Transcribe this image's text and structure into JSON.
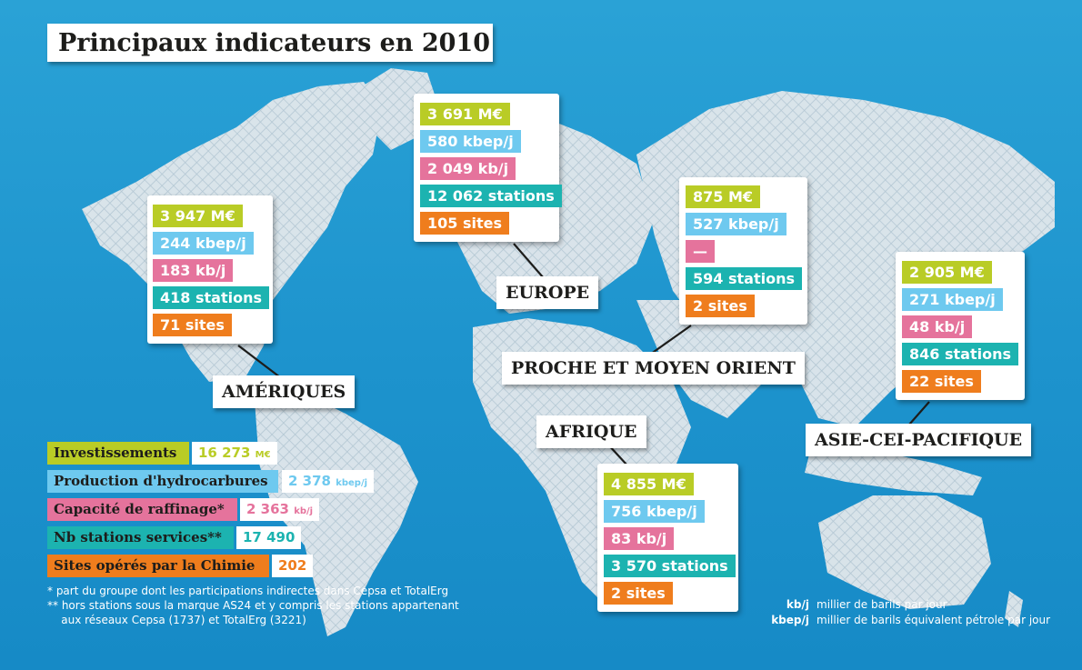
{
  "title": "Principaux indicateurs en 2010",
  "regions": {
    "ameriques": {
      "label": "AMÉRIQUES",
      "investissements": "3 947 M€",
      "production": "244 kbep/j",
      "raffinage": "183 kb/j",
      "stations": "418 stations",
      "sites": "71 sites"
    },
    "europe": {
      "label": "EUROPE",
      "investissements": "3 691 M€",
      "production": "580 kbep/j",
      "raffinage": "2 049 kb/j",
      "stations": "12 062 stations",
      "sites": "105 sites"
    },
    "proche_moyen_orient": {
      "label": "PROCHE ET MOYEN ORIENT",
      "investissements": "875 M€",
      "production": "527 kbep/j",
      "raffinage": "—",
      "stations": "594 stations",
      "sites": "2 sites"
    },
    "asie": {
      "label": "ASIE-CEI-PACIFIQUE",
      "investissements": "2 905 M€",
      "production": "271 kbep/j",
      "raffinage": "48 kb/j",
      "stations": "846 stations",
      "sites": "22 sites"
    },
    "afrique": {
      "label": "AFRIQUE",
      "investissements": "4 855 M€",
      "production": "756 kbep/j",
      "raffinage": "83 kb/j",
      "stations": "3 570 stations",
      "sites": "2 sites"
    }
  },
  "legend": {
    "investissements": {
      "label": "Investissements",
      "value": "16 273",
      "unit": "M€"
    },
    "production": {
      "label": "Production d'hydrocarbures",
      "value": "2 378",
      "unit": "kbep/j"
    },
    "raffinage": {
      "label": "Capacité de raffinage*",
      "value": "2 363",
      "unit": "kb/j"
    },
    "stations": {
      "label": "Nb stations services**",
      "value": "17 490"
    },
    "sites": {
      "label": "Sites opérés par la Chimie",
      "value": "202"
    }
  },
  "notes": {
    "note1": "*  part du groupe dont les participations indirectes dans Cepsa et TotalErg",
    "note2a": "** hors stations sous la marque AS24 et y compris les stations appartenant",
    "note2b": "    aux réseaux Cepsa (1737) et TotalErg (3221)"
  },
  "units": {
    "kbj_abbr": "kb/j",
    "kbj_desc": "millier de barils par jour",
    "kbepj_abbr": "kbep/j",
    "kbepj_desc": "millier de barils équivalent pétrole par jour"
  },
  "colors": {
    "investissements": "#b9cc26",
    "production": "#6ec9ef",
    "raffinage": "#e5739c",
    "stations": "#1cb3b0",
    "sites": "#ef7d1d",
    "ocean": "#1d93cd"
  }
}
